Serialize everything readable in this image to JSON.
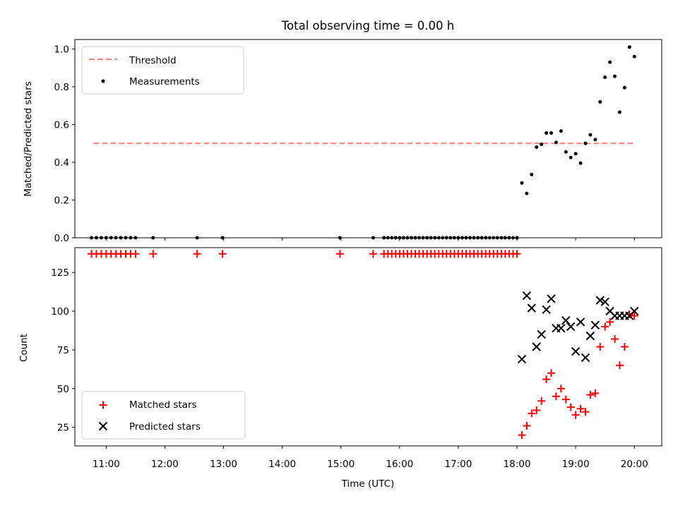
{
  "chart_data": [
    {
      "panel": "top",
      "type": "scatter",
      "title": "Total observing time = 0.00 h",
      "xlabel": "",
      "ylabel": "Matched/Predicted stars",
      "ylim": [
        0.0,
        1.05
      ],
      "yticks": [
        0.0,
        0.2,
        0.4,
        0.6,
        0.8,
        1.0
      ],
      "ytick_labels": [
        "0.0",
        "0.2",
        "0.4",
        "0.6",
        "0.8",
        "1.0"
      ],
      "legend_position": "upper-left",
      "series": [
        {
          "name": "Threshold",
          "style": "dashed-line",
          "color": "#ff7f7f",
          "points": [
            [
              "10:47",
              0.5
            ],
            [
              "20:00",
              0.5
            ]
          ]
        },
        {
          "name": "Measurements",
          "style": "dot",
          "color": "#000000",
          "points": [
            [
              "10:45",
              0.0
            ],
            [
              "10:50",
              0.0
            ],
            [
              "10:55",
              0.0
            ],
            [
              "11:00",
              0.0
            ],
            [
              "11:05",
              0.0
            ],
            [
              "11:10",
              0.0
            ],
            [
              "11:15",
              0.0
            ],
            [
              "11:20",
              0.0
            ],
            [
              "11:25",
              0.0
            ],
            [
              "11:30",
              0.0
            ],
            [
              "11:48",
              0.0
            ],
            [
              "12:33",
              0.0
            ],
            [
              "12:59",
              0.0
            ],
            [
              "14:59",
              0.0
            ],
            [
              "15:33",
              0.0
            ],
            [
              "15:44",
              0.0
            ],
            [
              "15:48",
              0.0
            ],
            [
              "15:52",
              0.0
            ],
            [
              "15:56",
              0.0
            ],
            [
              "16:00",
              0.0
            ],
            [
              "16:04",
              0.0
            ],
            [
              "16:08",
              0.0
            ],
            [
              "16:12",
              0.0
            ],
            [
              "16:16",
              0.0
            ],
            [
              "16:20",
              0.0
            ],
            [
              "16:24",
              0.0
            ],
            [
              "16:28",
              0.0
            ],
            [
              "16:32",
              0.0
            ],
            [
              "16:36",
              0.0
            ],
            [
              "16:40",
              0.0
            ],
            [
              "16:44",
              0.0
            ],
            [
              "16:48",
              0.0
            ],
            [
              "16:52",
              0.0
            ],
            [
              "16:56",
              0.0
            ],
            [
              "17:00",
              0.0
            ],
            [
              "17:04",
              0.0
            ],
            [
              "17:08",
              0.0
            ],
            [
              "17:12",
              0.0
            ],
            [
              "17:16",
              0.0
            ],
            [
              "17:20",
              0.0
            ],
            [
              "17:24",
              0.0
            ],
            [
              "17:28",
              0.0
            ],
            [
              "17:32",
              0.0
            ],
            [
              "17:36",
              0.0
            ],
            [
              "17:40",
              0.0
            ],
            [
              "17:44",
              0.0
            ],
            [
              "17:48",
              0.0
            ],
            [
              "17:52",
              0.0
            ],
            [
              "17:56",
              0.0
            ],
            [
              "18:00",
              0.0
            ],
            [
              "18:05",
              0.29
            ],
            [
              "18:10",
              0.235
            ],
            [
              "18:15",
              0.335
            ],
            [
              "18:20",
              0.48
            ],
            [
              "18:25",
              0.495
            ],
            [
              "18:30",
              0.555
            ],
            [
              "18:35",
              0.555
            ],
            [
              "18:40",
              0.505
            ],
            [
              "18:45",
              0.565
            ],
            [
              "18:50",
              0.455
            ],
            [
              "18:55",
              0.425
            ],
            [
              "19:00",
              0.445
            ],
            [
              "19:05",
              0.395
            ],
            [
              "19:10",
              0.5
            ],
            [
              "19:15",
              0.545
            ],
            [
              "19:20",
              0.52
            ],
            [
              "19:25",
              0.72
            ],
            [
              "19:30",
              0.85
            ],
            [
              "19:35",
              0.93
            ],
            [
              "19:40",
              0.855
            ],
            [
              "19:45",
              0.665
            ],
            [
              "19:50",
              0.795
            ],
            [
              "19:55",
              1.01
            ],
            [
              "20:00",
              0.96
            ]
          ]
        }
      ]
    },
    {
      "panel": "bottom",
      "type": "scatter",
      "title": "",
      "xlabel": "Time (UTC)",
      "ylabel": "Count",
      "ylim": [
        13,
        141
      ],
      "yticks": [
        25,
        50,
        75,
        100,
        125
      ],
      "ytick_labels": [
        "25",
        "50",
        "75",
        "100",
        "125"
      ],
      "xlim": [
        "10:28",
        "20:28"
      ],
      "xticks": [
        "11:00",
        "12:00",
        "13:00",
        "14:00",
        "15:00",
        "16:00",
        "17:00",
        "18:00",
        "19:00",
        "20:00"
      ],
      "xtick_labels": [
        "11:00",
        "12:00",
        "13:00",
        "14:00",
        "15:00",
        "16:00",
        "17:00",
        "18:00",
        "19:00",
        "20:00"
      ],
      "legend_position": "lower-left",
      "series": [
        {
          "name": "Matched stars",
          "marker": "plus",
          "color": "#ff0000",
          "points": [
            [
              "10:45",
              137
            ],
            [
              "10:50",
              137
            ],
            [
              "10:55",
              137
            ],
            [
              "11:00",
              137
            ],
            [
              "11:05",
              137
            ],
            [
              "11:10",
              137
            ],
            [
              "11:15",
              137
            ],
            [
              "11:20",
              137
            ],
            [
              "11:25",
              137
            ],
            [
              "11:30",
              137
            ],
            [
              "11:48",
              137
            ],
            [
              "12:33",
              137
            ],
            [
              "12:59",
              137
            ],
            [
              "14:59",
              137
            ],
            [
              "15:33",
              137
            ],
            [
              "15:44",
              137
            ],
            [
              "15:48",
              137
            ],
            [
              "15:52",
              137
            ],
            [
              "15:56",
              137
            ],
            [
              "16:00",
              137
            ],
            [
              "16:04",
              137
            ],
            [
              "16:08",
              137
            ],
            [
              "16:12",
              137
            ],
            [
              "16:16",
              137
            ],
            [
              "16:20",
              137
            ],
            [
              "16:24",
              137
            ],
            [
              "16:28",
              137
            ],
            [
              "16:32",
              137
            ],
            [
              "16:36",
              137
            ],
            [
              "16:40",
              137
            ],
            [
              "16:44",
              137
            ],
            [
              "16:48",
              137
            ],
            [
              "16:52",
              137
            ],
            [
              "16:56",
              137
            ],
            [
              "17:00",
              137
            ],
            [
              "17:04",
              137
            ],
            [
              "17:08",
              137
            ],
            [
              "17:12",
              137
            ],
            [
              "17:16",
              137
            ],
            [
              "17:20",
              137
            ],
            [
              "17:24",
              137
            ],
            [
              "17:28",
              137
            ],
            [
              "17:32",
              137
            ],
            [
              "17:36",
              137
            ],
            [
              "17:40",
              137
            ],
            [
              "17:44",
              137
            ],
            [
              "17:48",
              137
            ],
            [
              "17:52",
              137
            ],
            [
              "17:56",
              137
            ],
            [
              "18:00",
              137
            ],
            [
              "18:05",
              20
            ],
            [
              "18:10",
              26
            ],
            [
              "18:15",
              34
            ],
            [
              "18:20",
              36
            ],
            [
              "18:25",
              42
            ],
            [
              "18:30",
              56
            ],
            [
              "18:35",
              60
            ],
            [
              "18:40",
              45
            ],
            [
              "18:45",
              50
            ],
            [
              "18:50",
              43
            ],
            [
              "18:55",
              38
            ],
            [
              "19:00",
              33
            ],
            [
              "19:05",
              37
            ],
            [
              "19:10",
              35
            ],
            [
              "19:15",
              46
            ],
            [
              "19:20",
              47
            ],
            [
              "19:25",
              77
            ],
            [
              "19:30",
              90
            ],
            [
              "19:35",
              93
            ],
            [
              "19:40",
              82
            ],
            [
              "19:45",
              65
            ],
            [
              "19:50",
              77
            ],
            [
              "19:55",
              98
            ],
            [
              "20:00",
              97
            ]
          ]
        },
        {
          "name": "Predicted stars",
          "marker": "x",
          "color": "#000000",
          "points": [
            [
              "18:05",
              69
            ],
            [
              "18:10",
              110
            ],
            [
              "18:15",
              102
            ],
            [
              "18:20",
              77
            ],
            [
              "18:25",
              85
            ],
            [
              "18:30",
              101
            ],
            [
              "18:35",
              108
            ],
            [
              "18:40",
              89
            ],
            [
              "18:45",
              89
            ],
            [
              "18:50",
              94
            ],
            [
              "18:55",
              90
            ],
            [
              "19:00",
              74
            ],
            [
              "19:05",
              93
            ],
            [
              "19:10",
              70
            ],
            [
              "19:15",
              84
            ],
            [
              "19:20",
              91
            ],
            [
              "19:25",
              107
            ],
            [
              "19:30",
              106
            ],
            [
              "19:35",
              100
            ],
            [
              "19:40",
              97
            ],
            [
              "19:45",
              97
            ],
            [
              "19:50",
              97
            ],
            [
              "19:55",
              97
            ],
            [
              "20:00",
              100
            ]
          ]
        }
      ]
    }
  ]
}
